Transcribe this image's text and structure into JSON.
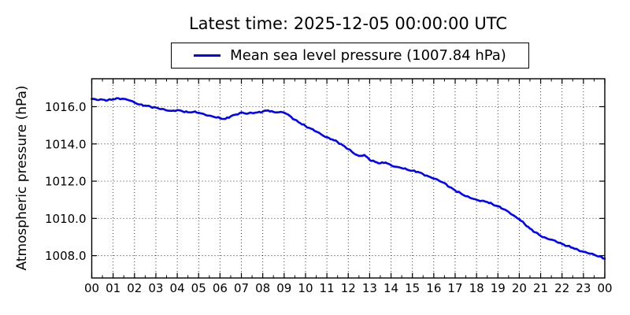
{
  "title": "Latest time: 2025-12-05 00:00:00 UTC",
  "legend": {
    "label": "Mean sea level pressure (1007.84 hPa)",
    "line_color": "#0000ff"
  },
  "colors": {
    "line": "#0000ff",
    "grid": "#000000",
    "text": "#000000",
    "background": "#ffffff",
    "border": "#000000"
  },
  "chart_data": {
    "type": "line",
    "title": "Latest time: 2025-12-05 00:00:00 UTC",
    "xlabel": "",
    "ylabel": "Atmospheric pressure (hPa)",
    "xlim": [
      0,
      24
    ],
    "ylim": [
      1006.8,
      1017.5
    ],
    "grid": true,
    "legend_position": "upper center outside",
    "latest_value_hpa": 1007.84,
    "x_hours_start": 0,
    "x_hours_step": 0.25,
    "xticks": {
      "positions": [
        0,
        1,
        2,
        3,
        4,
        5,
        6,
        7,
        8,
        9,
        10,
        11,
        12,
        13,
        14,
        15,
        16,
        17,
        18,
        19,
        20,
        21,
        22,
        23,
        24
      ],
      "labels": [
        "00",
        "01",
        "02",
        "03",
        "04",
        "05",
        "06",
        "07",
        "08",
        "09",
        "10",
        "11",
        "12",
        "13",
        "14",
        "15",
        "16",
        "17",
        "18",
        "19",
        "20",
        "21",
        "22",
        "23",
        "00"
      ]
    },
    "yticks": {
      "positions": [
        1008,
        1010,
        1012,
        1014,
        1016
      ],
      "labels": [
        "1008.0",
        "1010.0",
        "1012.0",
        "1014.0",
        "1016.0"
      ]
    },
    "series": [
      {
        "name": "Mean sea level pressure (1007.84 hPa)",
        "color": "#0000ff",
        "values": [
          1016.42,
          1016.36,
          1016.38,
          1016.35,
          1016.4,
          1016.45,
          1016.42,
          1016.34,
          1016.22,
          1016.12,
          1016.06,
          1016.0,
          1015.95,
          1015.87,
          1015.8,
          1015.78,
          1015.82,
          1015.75,
          1015.7,
          1015.72,
          1015.67,
          1015.6,
          1015.52,
          1015.44,
          1015.38,
          1015.34,
          1015.48,
          1015.58,
          1015.7,
          1015.62,
          1015.66,
          1015.69,
          1015.74,
          1015.8,
          1015.72,
          1015.7,
          1015.68,
          1015.52,
          1015.3,
          1015.12,
          1014.96,
          1014.82,
          1014.66,
          1014.5,
          1014.36,
          1014.24,
          1014.1,
          1013.92,
          1013.72,
          1013.5,
          1013.36,
          1013.41,
          1013.14,
          1013.04,
          1012.96,
          1013.0,
          1012.86,
          1012.77,
          1012.7,
          1012.62,
          1012.56,
          1012.5,
          1012.38,
          1012.26,
          1012.14,
          1012.02,
          1011.9,
          1011.68,
          1011.5,
          1011.36,
          1011.19,
          1011.08,
          1011.0,
          1010.95,
          1010.88,
          1010.76,
          1010.65,
          1010.5,
          1010.35,
          1010.15,
          1009.95,
          1009.7,
          1009.45,
          1009.25,
          1009.06,
          1008.95,
          1008.86,
          1008.74,
          1008.63,
          1008.52,
          1008.42,
          1008.31,
          1008.21,
          1008.12,
          1008.05,
          1007.96,
          1007.84
        ]
      }
    ]
  }
}
